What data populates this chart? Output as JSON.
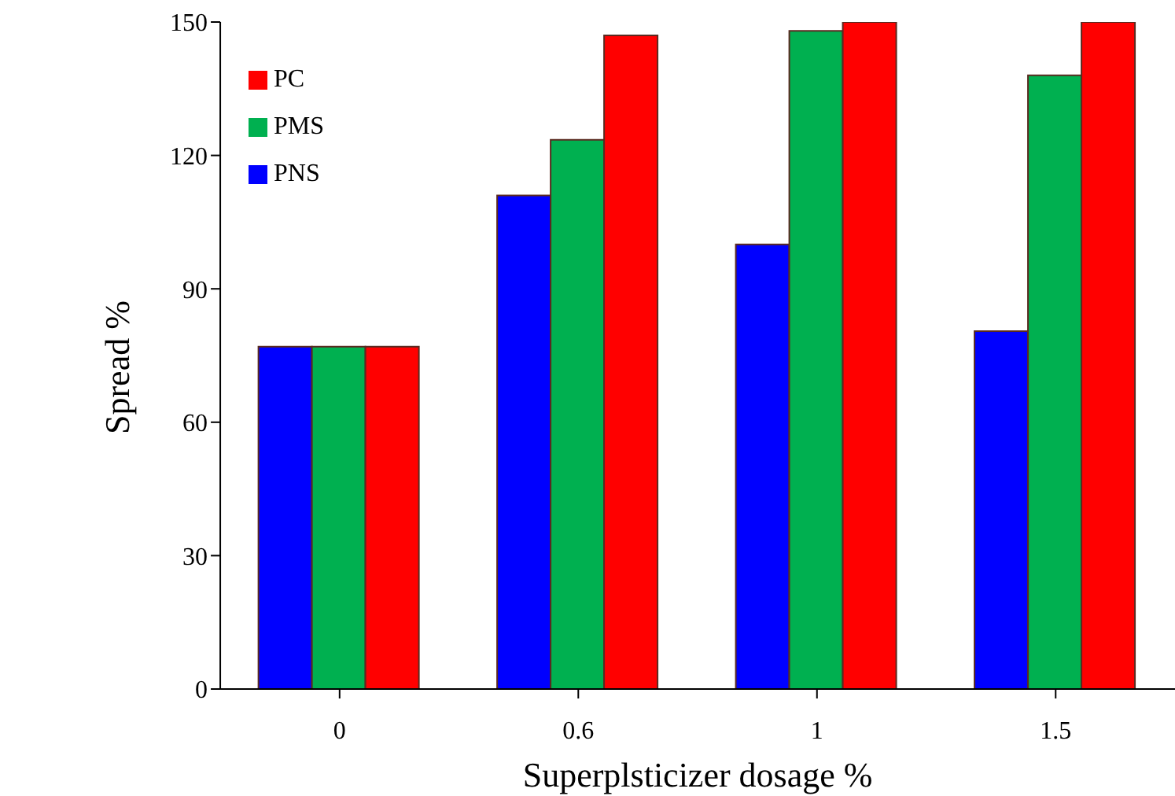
{
  "chart_data": {
    "type": "bar",
    "xlabel": "Superplsticizer dosage %",
    "ylabel": "Spread   %",
    "categories": [
      "0",
      "0.6",
      "1",
      "1.5"
    ],
    "series": [
      {
        "name": "PNS",
        "color": "#0000ff",
        "values": [
          77,
          111,
          100,
          80.5
        ]
      },
      {
        "name": "PMS",
        "color": "#00b050",
        "values": [
          77,
          123.5,
          148,
          138
        ]
      },
      {
        "name": "PC",
        "color": "#ff0000",
        "values": [
          77,
          147,
          150,
          150
        ]
      }
    ],
    "ylim": [
      0,
      150
    ],
    "yticks": [
      0,
      30,
      60,
      90,
      120,
      150
    ],
    "grid": false,
    "legend": "top left"
  }
}
